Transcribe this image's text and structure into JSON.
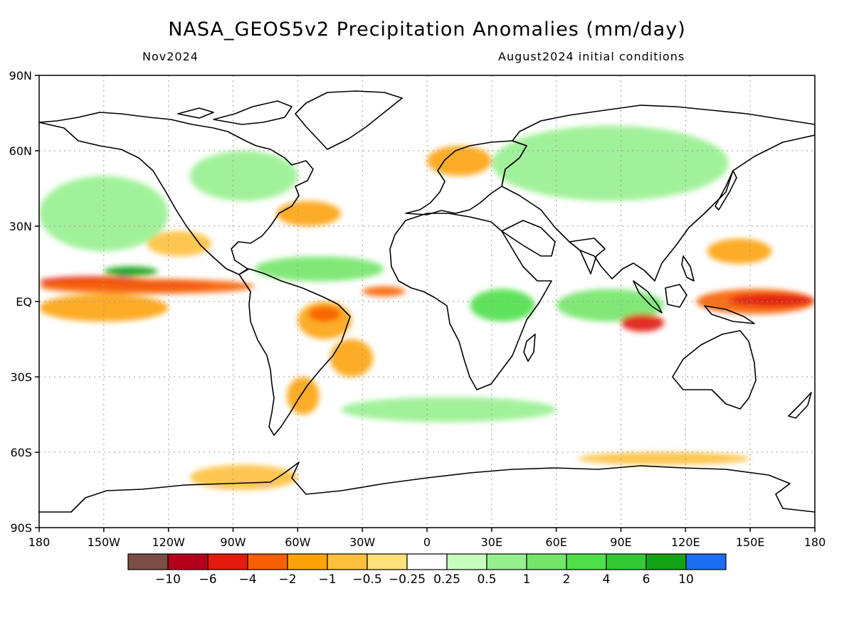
{
  "title": "NASA_GEOS5v2 Precipitation Anomalies (mm/day)",
  "subtitle_left": "Nov2024",
  "subtitle_right": "August2024 initial conditions",
  "map": {
    "projection": "equirectangular",
    "lon_range": [
      -180,
      180
    ],
    "lat_range": [
      -90,
      90
    ],
    "grid": "dotted",
    "lat_ticks": [
      {
        "lat": 90,
        "label": "90N"
      },
      {
        "lat": 60,
        "label": "60N"
      },
      {
        "lat": 30,
        "label": "30N"
      },
      {
        "lat": 0,
        "label": "EQ"
      },
      {
        "lat": -30,
        "label": "30S"
      },
      {
        "lat": -60,
        "label": "60S"
      },
      {
        "lat": -90,
        "label": "90S"
      }
    ],
    "lon_ticks": [
      {
        "lon": -180,
        "label": "180"
      },
      {
        "lon": -150,
        "label": "150W"
      },
      {
        "lon": -120,
        "label": "120W"
      },
      {
        "lon": -90,
        "label": "90W"
      },
      {
        "lon": -60,
        "label": "60W"
      },
      {
        "lon": -30,
        "label": "30W"
      },
      {
        "lon": 0,
        "label": "0"
      },
      {
        "lon": 30,
        "label": "30E"
      },
      {
        "lon": 60,
        "label": "60E"
      },
      {
        "lon": 90,
        "label": "90E"
      },
      {
        "lon": 120,
        "label": "120E"
      },
      {
        "lon": 150,
        "label": "150E"
      },
      {
        "lon": 180,
        "label": "180"
      }
    ]
  },
  "colorbar": {
    "colors": [
      "#7a4e45",
      "#b4001a",
      "#e21b0e",
      "#f75f05",
      "#fca30b",
      "#fdc03e",
      "#fde17a",
      "#ffffff",
      "#c7fcbe",
      "#97f08f",
      "#74e569",
      "#4fe04a",
      "#36c936",
      "#14a314",
      "#1c6df0"
    ],
    "labels": [
      "−10",
      "−6",
      "−4",
      "−2",
      "−1",
      "−0.5",
      "−0.25",
      "0.25",
      "0.5",
      "1",
      "2",
      "4",
      "6",
      "10"
    ]
  },
  "anomaly_regions": [
    {
      "lon": [
        -180,
        -130
      ],
      "lat": [
        6,
        10
      ],
      "level": "-4"
    },
    {
      "lon": [
        -150,
        -100
      ],
      "lat": [
        5,
        8
      ],
      "level": "-6"
    },
    {
      "lon": [
        -180,
        -80
      ],
      "lat": [
        3,
        9
      ],
      "level": "-2"
    },
    {
      "lon": [
        -180,
        -120
      ],
      "lat": [
        -8,
        3
      ],
      "level": "-1"
    },
    {
      "lon": [
        -145,
        -135
      ],
      "lat": [
        10,
        12
      ],
      "level": "10"
    },
    {
      "lon": [
        -150,
        -125
      ],
      "lat": [
        10,
        14
      ],
      "level": "6"
    },
    {
      "lon": [
        -60,
        -35
      ],
      "lat": [
        -15,
        0
      ],
      "level": "-1"
    },
    {
      "lon": [
        -55,
        -40
      ],
      "lat": [
        -8,
        -2
      ],
      "level": "-2"
    },
    {
      "lon": [
        -45,
        -25
      ],
      "lat": [
        -30,
        -15
      ],
      "level": "-1"
    },
    {
      "lon": [
        -65,
        -50
      ],
      "lat": [
        -45,
        -30
      ],
      "level": "-1"
    },
    {
      "lon": [
        -70,
        -40
      ],
      "lat": [
        30,
        40
      ],
      "level": "-1"
    },
    {
      "lon": [
        -130,
        -100
      ],
      "lat": [
        18,
        28
      ],
      "level": "-0.5"
    },
    {
      "lon": [
        -30,
        -10
      ],
      "lat": [
        2,
        6
      ],
      "level": "-2"
    },
    {
      "lon": [
        -80,
        -20
      ],
      "lat": [
        8,
        18
      ],
      "level": "1"
    },
    {
      "lon": [
        20,
        50
      ],
      "lat": [
        -8,
        5
      ],
      "level": "2"
    },
    {
      "lon": [
        60,
        110
      ],
      "lat": [
        -8,
        5
      ],
      "level": "1"
    },
    {
      "lon": [
        90,
        110
      ],
      "lat": [
        -12,
        -5
      ],
      "level": "-4"
    },
    {
      "lon": [
        125,
        180
      ],
      "lat": [
        -5,
        5
      ],
      "level": "-2"
    },
    {
      "lon": [
        140,
        180
      ],
      "lat": [
        -2,
        3
      ],
      "level": "-4"
    },
    {
      "lon": [
        130,
        160
      ],
      "lat": [
        15,
        25
      ],
      "level": "-1"
    },
    {
      "lon": [
        0,
        30
      ],
      "lat": [
        50,
        62
      ],
      "level": "-1"
    },
    {
      "lon": [
        -40,
        60
      ],
      "lat": [
        -48,
        -38
      ],
      "level": "0.5"
    },
    {
      "lon": [
        70,
        150
      ],
      "lat": [
        -65,
        -60
      ],
      "level": "-0.5"
    },
    {
      "lon": [
        -110,
        -60
      ],
      "lat": [
        -75,
        -65
      ],
      "level": "-0.5"
    },
    {
      "lon": [
        -180,
        -120
      ],
      "lat": [
        20,
        50
      ],
      "level": "0.5"
    },
    {
      "lon": [
        -110,
        -60
      ],
      "lat": [
        40,
        60
      ],
      "level": "0.5"
    },
    {
      "lon": [
        30,
        140
      ],
      "lat": [
        40,
        70
      ],
      "level": "0.5"
    }
  ]
}
